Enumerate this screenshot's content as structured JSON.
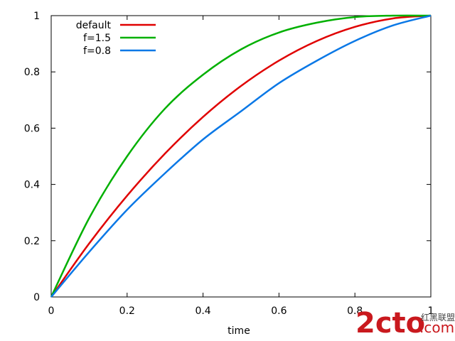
{
  "chart_data": {
    "type": "line",
    "xlabel": "time",
    "ylabel": "",
    "xlim": [
      0,
      1
    ],
    "ylim": [
      0,
      1
    ],
    "grid": false,
    "legend_position": "top-left",
    "x_ticks": [
      "0",
      "0.2",
      "0.4",
      "0.6",
      "0.8",
      "1"
    ],
    "y_ticks": [
      "0",
      "0.2",
      "0.4",
      "0.6",
      "0.8",
      "1"
    ],
    "x": [
      0,
      0.1,
      0.2,
      0.3,
      0.4,
      0.5,
      0.6,
      0.7,
      0.8,
      0.9,
      1.0
    ],
    "series": [
      {
        "name": "default",
        "color": "#e00000",
        "values": [
          0,
          0.19,
          0.36,
          0.51,
          0.64,
          0.75,
          0.84,
          0.91,
          0.96,
          0.99,
          1.0
        ]
      },
      {
        "name": "f=1.5",
        "color": "#00b000",
        "values": [
          0,
          0.28,
          0.5,
          0.67,
          0.79,
          0.88,
          0.94,
          0.975,
          0.995,
          1.0,
          1.0
        ]
      },
      {
        "name": "f=0.8",
        "color": "#0a78e6",
        "values": [
          0,
          0.16,
          0.31,
          0.44,
          0.56,
          0.66,
          0.76,
          0.84,
          0.91,
          0.965,
          1.0
        ]
      }
    ]
  },
  "watermark": {
    "main": "2cto",
    "dotcom": ".com",
    "sub": "红黑联盟",
    "color": "#c9191e"
  }
}
